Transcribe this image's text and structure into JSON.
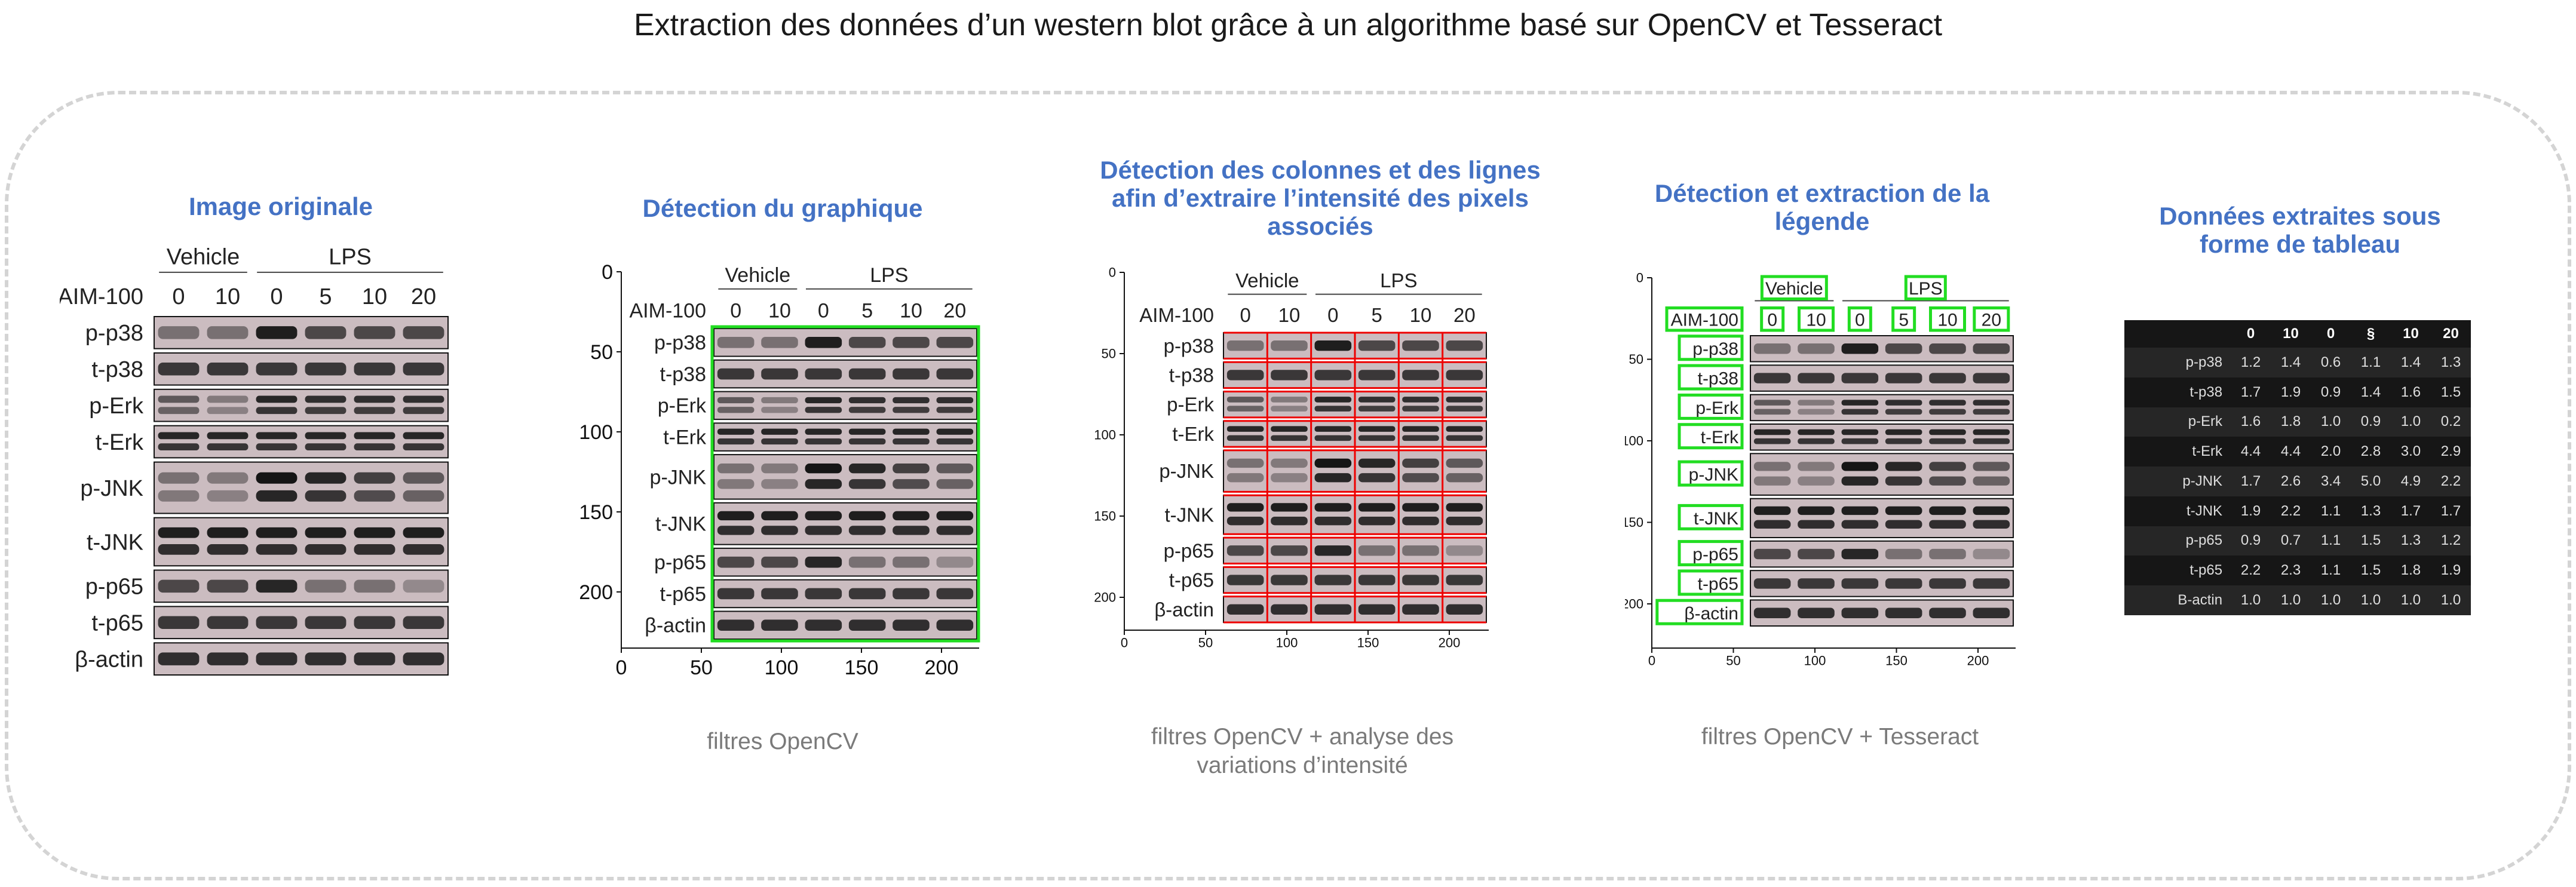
{
  "title": "Extraction des données d’un western blot grâce à un algorithme basé sur OpenCV et Tesseract",
  "panels": [
    {
      "title": "Image originale",
      "caption": ""
    },
    {
      "title": "Détection du graphique",
      "caption": "filtres OpenCV"
    },
    {
      "title": "Détection des colonnes et des lignes afin d’extraire l’intensité des pixels associés",
      "caption": "filtres OpenCV + analyse des variations d’intensité"
    },
    {
      "title": "Détection et extraction de la légende",
      "caption": "filtres OpenCV + Tesseract"
    },
    {
      "title": "Données extraites sous forme de tableau",
      "caption": ""
    }
  ],
  "blot": {
    "groups": [
      "Vehicle",
      "LPS"
    ],
    "treatment_label": "AIM-100",
    "doses": [
      "0",
      "10",
      "0",
      "5",
      "10",
      "20"
    ],
    "bands": [
      "p-p38",
      "t-p38",
      "p-Erk",
      "t-Erk",
      "p-JNK",
      "t-JNK",
      "p-p65",
      "t-p65",
      "β-actin"
    ],
    "x_ticks": [
      "0",
      "50",
      "100",
      "150",
      "200"
    ],
    "y_ticks": [
      "0",
      "50",
      "100",
      "150",
      "200"
    ]
  },
  "table": {
    "headers": [
      "",
      "0",
      "10",
      "0",
      "§",
      "10",
      "20"
    ],
    "rows": [
      [
        "p-p38",
        "1.2",
        "1.4",
        "0.6",
        "1.1",
        "1.4",
        "1.3"
      ],
      [
        "t-p38",
        "1.7",
        "1.9",
        "0.9",
        "1.4",
        "1.6",
        "1.5"
      ],
      [
        "p-Erk",
        "1.6",
        "1.8",
        "1.0",
        "0.9",
        "1.0",
        "0.2"
      ],
      [
        "t-Erk",
        "4.4",
        "4.4",
        "2.0",
        "2.8",
        "3.0",
        "2.9"
      ],
      [
        "p-JNK",
        "1.7",
        "2.6",
        "3.4",
        "5.0",
        "4.9",
        "2.2"
      ],
      [
        "t-JNK",
        "1.9",
        "2.2",
        "1.1",
        "1.3",
        "1.7",
        "1.7"
      ],
      [
        "p-p65",
        "0.9",
        "0.7",
        "1.1",
        "1.5",
        "1.3",
        "1.2"
      ],
      [
        "t-p65",
        "2.2",
        "2.3",
        "1.1",
        "1.5",
        "1.8",
        "1.9"
      ],
      [
        "B-actin",
        "1.0",
        "1.0",
        "1.0",
        "1.0",
        "1.0",
        "1.0"
      ]
    ]
  }
}
